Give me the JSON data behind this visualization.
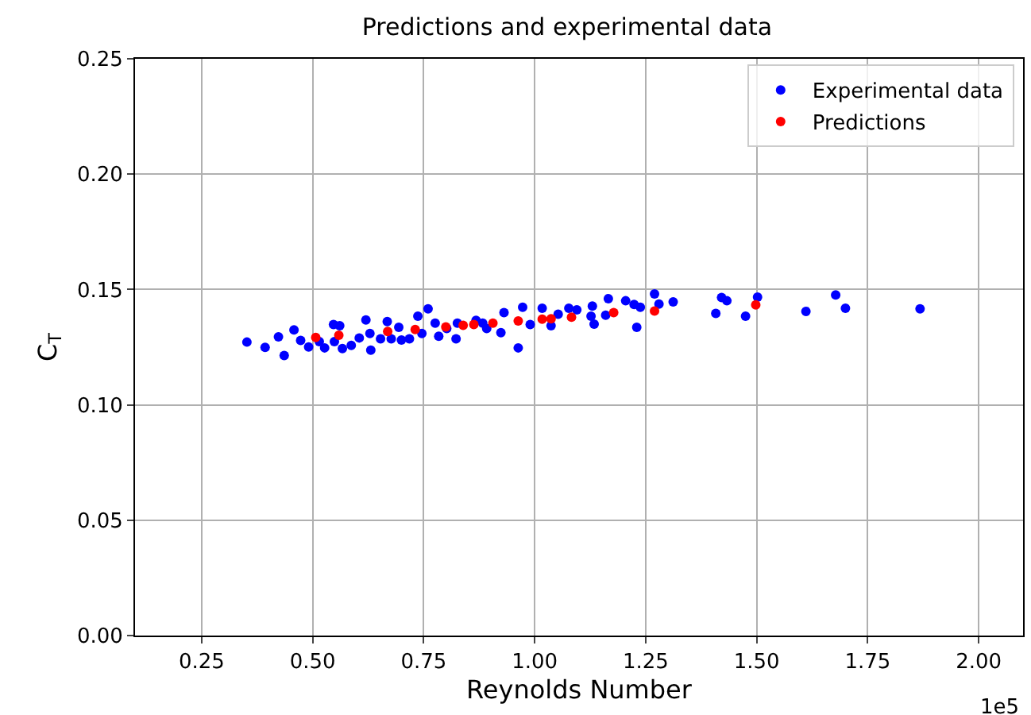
{
  "chart_data": {
    "type": "scatter",
    "title": "Predictions and experimental data",
    "xlabel": "Reynolds Number",
    "ylabel": "C$_{T}$",
    "annotations": [
      "1e5"
    ],
    "xlim": [
      0.1,
      2.1
    ],
    "xticks": [
      {
        "value": 0.25,
        "label": "0.25"
      },
      {
        "value": 0.5,
        "label": "0.50"
      },
      {
        "value": 0.75,
        "label": "0.75"
      },
      {
        "value": 1,
        "label": "1.00"
      },
      {
        "value": 1.25,
        "label": "1.25"
      },
      {
        "value": 1.5,
        "label": "1.50"
      },
      {
        "value": 1.75,
        "label": "1.75"
      },
      {
        "value": 2,
        "label": "2.00"
      }
    ],
    "ylim": [
      0,
      0.25
    ],
    "yticks": [
      {
        "value": 0,
        "label": "0.00"
      },
      {
        "value": 0.05,
        "label": "0.05"
      },
      {
        "value": 0.1,
        "label": "0.10"
      },
      {
        "value": 0.15,
        "label": "0.15"
      },
      {
        "value": 0.2,
        "label": "0.20"
      },
      {
        "value": 0.25,
        "label": "0.25"
      }
    ],
    "grid": true,
    "legend": "top right",
    "marker": "circle",
    "series": [
      {
        "name": "Experimental data",
        "color": "#0000ff",
        "x": [
          0.352,
          0.393,
          0.423,
          0.436,
          0.458,
          0.473,
          0.491,
          0.515,
          0.527,
          0.547,
          0.561,
          0.549,
          0.567,
          0.587,
          0.605,
          0.62,
          0.629,
          0.631,
          0.653,
          0.668,
          0.677,
          0.694,
          0.7,
          0.718,
          0.737,
          0.76,
          0.746,
          0.776,
          0.784,
          0.802,
          0.823,
          0.826,
          0.868,
          0.883,
          0.892,
          0.924,
          0.931,
          0.963,
          0.973,
          0.99,
          1.017,
          1.037,
          1.053,
          1.077,
          1.095,
          1.13,
          1.127,
          1.134,
          1.16,
          1.166,
          1.205,
          1.224,
          1.238,
          1.23,
          1.27,
          1.28,
          1.312,
          1.408,
          1.421,
          1.433,
          1.475,
          1.502,
          1.611,
          1.678,
          1.7,
          1.868
        ],
        "values": [
          0.1272,
          0.1249,
          0.1295,
          0.1214,
          0.1325,
          0.1279,
          0.1251,
          0.1274,
          0.1247,
          0.1348,
          0.1343,
          0.1274,
          0.1244,
          0.1258,
          0.129,
          0.1368,
          0.1309,
          0.1237,
          0.1286,
          0.1361,
          0.1286,
          0.1336,
          0.1281,
          0.1286,
          0.1384,
          0.1416,
          0.1309,
          0.1354,
          0.1297,
          0.1331,
          0.1286,
          0.1354,
          0.1366,
          0.1354,
          0.1331,
          0.1313,
          0.14,
          0.1247,
          0.1423,
          0.1348,
          0.1419,
          0.1343,
          0.1393,
          0.1419,
          0.1412,
          0.1428,
          0.1384,
          0.135,
          0.1389,
          0.146,
          0.1451,
          0.1435,
          0.1423,
          0.1336,
          0.1481,
          0.1437,
          0.1446,
          0.1396,
          0.1465,
          0.1451,
          0.1384,
          0.1467,
          0.1405,
          0.1476,
          0.1419,
          0.1416
        ]
      },
      {
        "name": "Predictions",
        "color": "#ff0000",
        "x": [
          0.507,
          0.559,
          0.669,
          0.731,
          0.8,
          0.839,
          0.863,
          0.906,
          0.963,
          1.017,
          1.037,
          1.083,
          1.178,
          1.27,
          1.498
        ],
        "values": [
          0.1292,
          0.1302,
          0.1318,
          0.1327,
          0.1338,
          0.1345,
          0.1348,
          0.1354,
          0.1364,
          0.1371,
          0.1373,
          0.138,
          0.14,
          0.1407,
          0.1433
        ]
      }
    ]
  }
}
